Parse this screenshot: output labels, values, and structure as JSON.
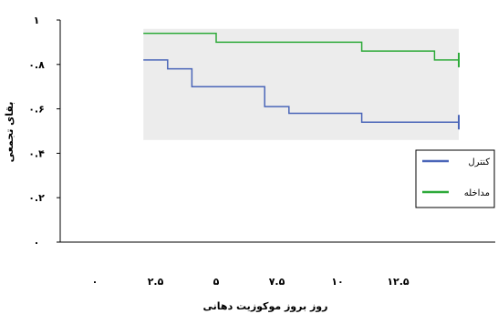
{
  "chart_data": {
    "type": "line",
    "xlabel": "روز بروز موکوزیت دهانی",
    "ylabel": "بقای تجمعی",
    "xlim": [
      0,
      15
    ],
    "ylim": [
      0,
      1
    ],
    "x_ticks": [
      {
        "value": 0,
        "label": "۰"
      },
      {
        "value": 2.5,
        "label": "۲.۵"
      },
      {
        "value": 5,
        "label": "۵"
      },
      {
        "value": 7.5,
        "label": "۷.۵"
      },
      {
        "value": 10,
        "label": "۱۰"
      },
      {
        "value": 12.5,
        "label": "۱۲.۵"
      }
    ],
    "y_ticks": [
      {
        "value": 0,
        "label": "۰"
      },
      {
        "value": 0.2,
        "label": "۰.۲"
      },
      {
        "value": 0.4,
        "label": "۰.۴"
      },
      {
        "value": 0.6,
        "label": "۰.۶"
      },
      {
        "value": 0.8,
        "label": "۰.۸"
      },
      {
        "value": 1,
        "label": "۱"
      }
    ],
    "series": [
      {
        "name": "کنترل",
        "color": "#4a65b8",
        "step": true,
        "x": [
          2,
          3,
          4,
          7,
          8,
          11,
          15
        ],
        "y": [
          0.82,
          0.78,
          0.7,
          0.61,
          0.58,
          0.54,
          0.54
        ],
        "censored": [
          {
            "x": 15,
            "y": 0.54
          }
        ]
      },
      {
        "name": "مداخله",
        "color": "#2eaa3a",
        "step": true,
        "x": [
          2,
          5,
          11,
          14,
          15
        ],
        "y": [
          0.94,
          0.9,
          0.86,
          0.82,
          0.82
        ],
        "censored": [
          {
            "x": 15,
            "y": 0.82
          }
        ]
      }
    ],
    "shaded_region": {
      "x": [
        2,
        15
      ],
      "y": [
        0.46,
        0.96
      ],
      "color": "#ececec"
    },
    "legend": {
      "position": "right"
    }
  }
}
